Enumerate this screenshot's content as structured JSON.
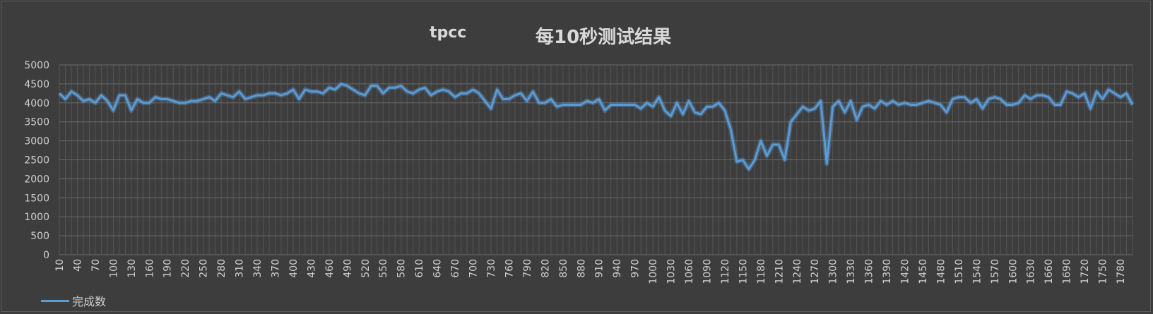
{
  "window": {
    "title_left": "tpcc",
    "title_right": "每10秒测试结果"
  },
  "legend": {
    "series_label": "完成数"
  },
  "colors": {
    "background": "#3d3d3d",
    "series": "#5b9bd5",
    "grid": "#5a5a5a",
    "text": "#cfcfcf"
  },
  "chart_data": {
    "type": "line",
    "title": "tpcc 每10秒测试结果",
    "xlabel": "",
    "ylabel": "",
    "ylim": [
      0,
      5000
    ],
    "yticks": [
      0,
      500,
      1000,
      1500,
      2000,
      2500,
      3000,
      3500,
      4000,
      4500,
      5000
    ],
    "xlim": [
      10,
      1800
    ],
    "x_step": 10,
    "x_tick_labels": [
      "10",
      "40",
      "70",
      "100",
      "130",
      "160",
      "190",
      "220",
      "250",
      "280",
      "310",
      "340",
      "370",
      "400",
      "430",
      "460",
      "490",
      "520",
      "550",
      "580",
      "610",
      "640",
      "670",
      "700",
      "730",
      "760",
      "790",
      "820",
      "850",
      "880",
      "910",
      "940",
      "970",
      "1000",
      "1030",
      "1060",
      "1090",
      "1120",
      "1150",
      "1180",
      "1210",
      "1240",
      "1270",
      "1300",
      "1330",
      "1360",
      "1390",
      "1420",
      "1450",
      "1480",
      "1510",
      "1540",
      "1570",
      "1600",
      "1630",
      "1660",
      "1690",
      "1720",
      "1750",
      "1780"
    ],
    "grid": true,
    "legend_position": "bottom-left",
    "series": [
      {
        "name": "完成数",
        "values": [
          4250,
          4100,
          4300,
          4200,
          4050,
          4100,
          4000,
          4200,
          4050,
          3800,
          4200,
          4200,
          3800,
          4100,
          4000,
          4000,
          4150,
          4100,
          4100,
          4050,
          4000,
          4000,
          4050,
          4050,
          4100,
          4150,
          4050,
          4250,
          4200,
          4150,
          4300,
          4100,
          4150,
          4200,
          4200,
          4250,
          4250,
          4200,
          4250,
          4350,
          4100,
          4350,
          4300,
          4300,
          4250,
          4400,
          4350,
          4500,
          4450,
          4350,
          4250,
          4200,
          4450,
          4450,
          4250,
          4400,
          4400,
          4450,
          4300,
          4250,
          4350,
          4400,
          4200,
          4300,
          4350,
          4300,
          4150,
          4250,
          4250,
          4350,
          4250,
          4050,
          3850,
          4350,
          4100,
          4100,
          4200,
          4250,
          4050,
          4300,
          4000,
          4000,
          4100,
          3900,
          3950,
          3950,
          3950,
          3950,
          4050,
          4000,
          4100,
          3800,
          3950,
          3950,
          3950,
          3950,
          3950,
          3850,
          4000,
          3900,
          4150,
          3800,
          3650,
          4000,
          3700,
          4050,
          3750,
          3700,
          3900,
          3900,
          4000,
          3800,
          3300,
          2450,
          2500,
          2250,
          2500,
          3000,
          2600,
          2900,
          2900,
          2500,
          3500,
          3700,
          3900,
          3800,
          3850,
          4050,
          2400,
          3900,
          4050,
          3750,
          4050,
          3550,
          3900,
          3950,
          3850,
          4050,
          3950,
          4050,
          3950,
          4000,
          3950,
          3950,
          4000,
          4050,
          4000,
          3950,
          3750,
          4100,
          4150,
          4150,
          4000,
          4100,
          3850,
          4100,
          4150,
          4100,
          3950,
          3950,
          4000,
          4200,
          4100,
          4200,
          4200,
          4150,
          3950,
          3950,
          4300,
          4250,
          4150,
          4250,
          3850,
          4300,
          4100,
          4350,
          4250,
          4150,
          4250,
          3950
        ]
      }
    ]
  }
}
